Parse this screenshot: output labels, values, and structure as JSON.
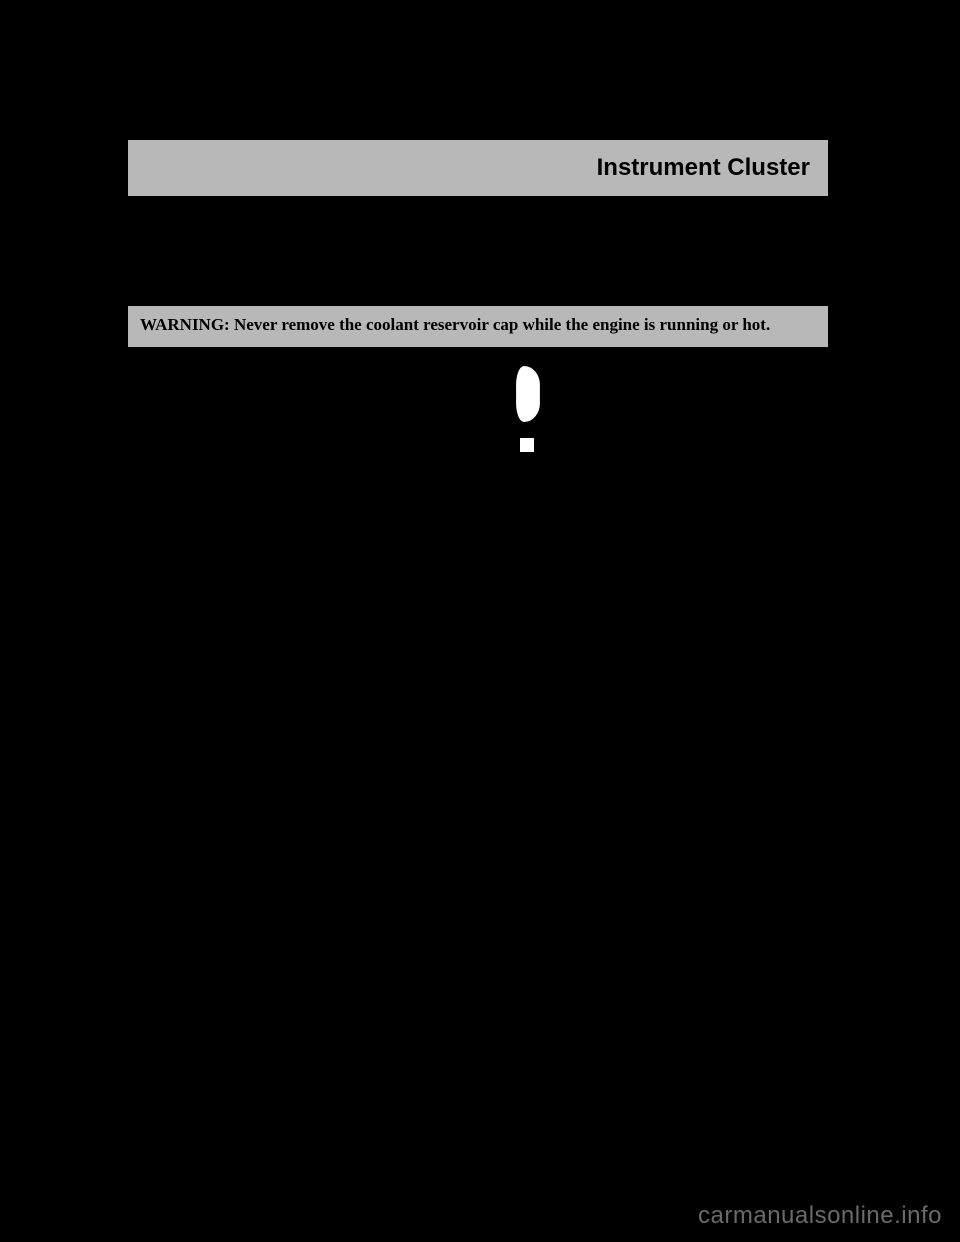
{
  "header": {
    "title": "Instrument Cluster",
    "bg_color": "#b8b8b8",
    "text_color": "#000000"
  },
  "warning": {
    "text": "WARNING: Never remove the coolant reservoir cap while the engine is running or hot.",
    "bg_color": "#b8b8b8",
    "text_color": "#000000"
  },
  "icon": {
    "name": "warning-figure-icon",
    "shape_color": "#ffffff"
  },
  "watermark": {
    "text": "carmanualsonline.info",
    "color": "#6a6a6a"
  },
  "page_bg": "#000000"
}
